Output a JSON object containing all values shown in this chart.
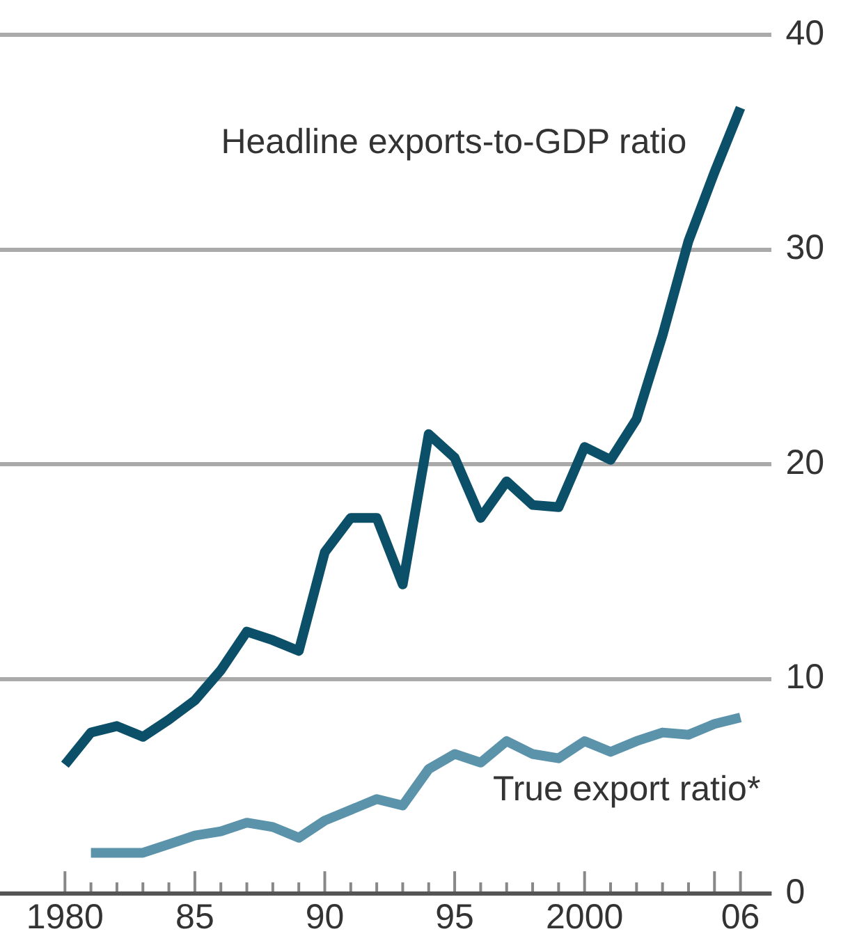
{
  "chart_data": {
    "type": "line",
    "legend": false,
    "grid": "y",
    "xlim": [
      1977.5,
      2007.2
    ],
    "ylim": [
      0,
      40
    ],
    "yticks": [
      0,
      10,
      20,
      30,
      40
    ],
    "xticks": [
      {
        "value": 1980,
        "label": "1980"
      },
      {
        "value": 1981,
        "label": null
      },
      {
        "value": 1982,
        "label": null
      },
      {
        "value": 1983,
        "label": null
      },
      {
        "value": 1984,
        "label": null
      },
      {
        "value": 1985,
        "label": "85"
      },
      {
        "value": 1986,
        "label": null
      },
      {
        "value": 1987,
        "label": null
      },
      {
        "value": 1988,
        "label": null
      },
      {
        "value": 1989,
        "label": null
      },
      {
        "value": 1990,
        "label": "90"
      },
      {
        "value": 1991,
        "label": null
      },
      {
        "value": 1992,
        "label": null
      },
      {
        "value": 1993,
        "label": null
      },
      {
        "value": 1994,
        "label": null
      },
      {
        "value": 1995,
        "label": "95"
      },
      {
        "value": 1996,
        "label": null
      },
      {
        "value": 1997,
        "label": null
      },
      {
        "value": 1998,
        "label": null
      },
      {
        "value": 1999,
        "label": null
      },
      {
        "value": 2000,
        "label": "2000"
      },
      {
        "value": 2001,
        "label": null
      },
      {
        "value": 2002,
        "label": null
      },
      {
        "value": 2003,
        "label": null
      },
      {
        "value": 2004,
        "label": null
      },
      {
        "value": 2005,
        "label": null
      },
      {
        "value": 2006,
        "label": "06"
      }
    ],
    "series": [
      {
        "name": "Headline exports-to-GDP ratio",
        "color": "#0b5068",
        "x": [
          1980,
          1981,
          1982,
          1983,
          1984,
          1985,
          1986,
          1987,
          1988,
          1989,
          1990,
          1991,
          1992,
          1993,
          1994,
          1995,
          1996,
          1997,
          1998,
          1999,
          2000,
          2001,
          2002,
          2003,
          2004,
          2005,
          2006
        ],
        "values": [
          6.0,
          7.5,
          7.8,
          7.3,
          8.1,
          9.0,
          10.4,
          12.2,
          11.8,
          11.3,
          15.9,
          17.5,
          17.5,
          14.4,
          21.4,
          20.3,
          17.5,
          19.2,
          18.1,
          18.0,
          20.8,
          20.2,
          22.1,
          26.0,
          30.4,
          33.6,
          36.6
        ]
      },
      {
        "name": "True export ratio*",
        "color": "#5b93ab",
        "x": [
          1981,
          1982,
          1983,
          1984,
          1985,
          1986,
          1987,
          1988,
          1989,
          1990,
          1991,
          1992,
          1993,
          1994,
          1995,
          1996,
          1997,
          1998,
          1999,
          2000,
          2001,
          2002,
          2003,
          2004,
          2005,
          2006
        ],
        "values": [
          1.9,
          1.9,
          1.9,
          2.3,
          2.7,
          2.9,
          3.3,
          3.1,
          2.6,
          3.4,
          3.9,
          4.4,
          4.1,
          5.8,
          6.5,
          6.1,
          7.1,
          6.5,
          6.3,
          7.1,
          6.6,
          7.1,
          7.5,
          7.4,
          7.9,
          8.2
        ]
      }
    ]
  }
}
